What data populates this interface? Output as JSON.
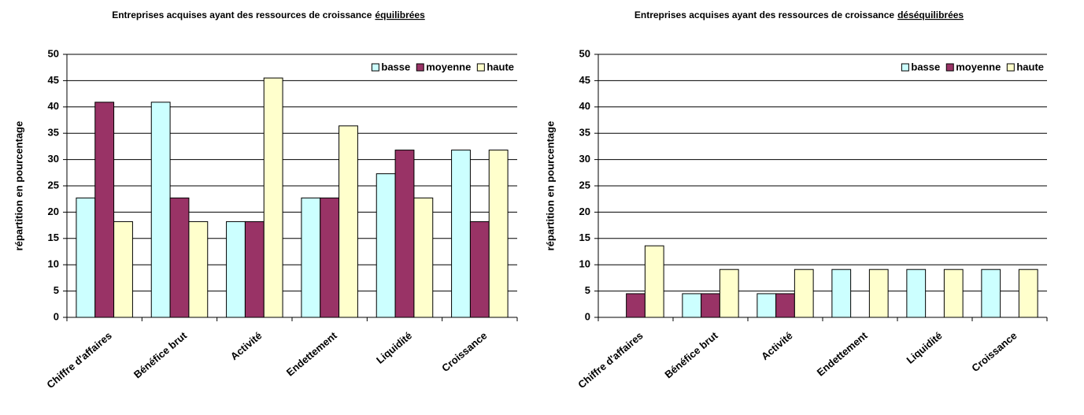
{
  "chart_data": [
    {
      "type": "bar",
      "title": {
        "text": "Entreprises acquises ayant des ressources de croissance",
        "underlined": "équilibrées"
      },
      "ylabel": "répartition en pourcentage",
      "categories": [
        "Chiffre d'affaires",
        "Bénéfice brut",
        "Activité",
        "Endettement",
        "Liquidité",
        "Croissance"
      ],
      "series": [
        {
          "name": "basse",
          "color": "#ccffff",
          "values": [
            22.7,
            40.9,
            18.2,
            22.7,
            27.3,
            31.8
          ]
        },
        {
          "name": "moyenne",
          "color": "#993366",
          "values": [
            40.9,
            22.7,
            18.2,
            22.7,
            31.8,
            18.2
          ]
        },
        {
          "name": "haute",
          "color": "#ffffcc",
          "values": [
            18.2,
            18.2,
            45.5,
            36.4,
            22.7,
            31.8
          ]
        }
      ],
      "ylim": [
        0,
        50
      ],
      "yticks": [
        0,
        5,
        10,
        15,
        20,
        25,
        30,
        35,
        40,
        45,
        50
      ],
      "grid": true,
      "legend": "top-right"
    },
    {
      "type": "bar",
      "title": {
        "text": "Entreprises acquises ayant des ressources de croissance",
        "underlined": "déséquilibrées"
      },
      "ylabel": "répartition en pourcentage",
      "categories": [
        "Chiffre d'affaires",
        "Bénéfice brut",
        "Activité",
        "Endettement",
        "Liquidité",
        "Croissance"
      ],
      "series": [
        {
          "name": "basse",
          "color": "#ccffff",
          "values": [
            0,
            4.5,
            4.5,
            9.1,
            9.1,
            9.1
          ]
        },
        {
          "name": "moyenne",
          "color": "#993366",
          "values": [
            4.5,
            4.5,
            4.5,
            0,
            0,
            0
          ]
        },
        {
          "name": "haute",
          "color": "#ffffcc",
          "values": [
            13.6,
            9.1,
            9.1,
            9.1,
            9.1,
            9.1
          ]
        }
      ],
      "ylim": [
        0,
        50
      ],
      "yticks": [
        0,
        5,
        10,
        15,
        20,
        25,
        30,
        35,
        40,
        45,
        50
      ],
      "grid": true,
      "legend": "top-right"
    }
  ]
}
